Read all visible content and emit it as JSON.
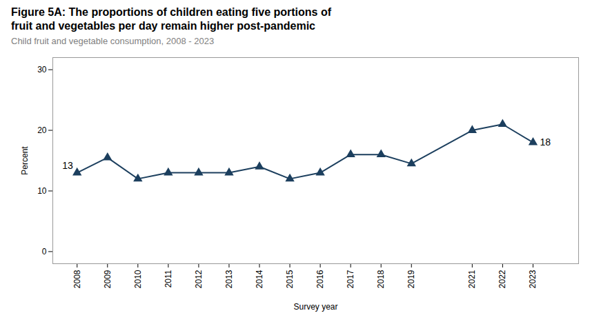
{
  "chart_data": {
    "type": "line",
    "title": "Figure 5A: The proportions of children eating five portions of\nfruit and vegetables per day remain higher post-pandemic",
    "subtitle": "Child fruit and vegetable consumption, 2008 - 2023",
    "xlabel": "Survey year",
    "ylabel": "Percent",
    "x": [
      2008,
      2009,
      2010,
      2011,
      2012,
      2013,
      2014,
      2015,
      2016,
      2017,
      2018,
      2019,
      2021,
      2022,
      2023
    ],
    "values": [
      13,
      15.5,
      12,
      13,
      13,
      13,
      14,
      12,
      13,
      16,
      16,
      14.5,
      20,
      21,
      18
    ],
    "color": "#1c3f5e",
    "marker": "triangle",
    "xlim": [
      2007.2,
      2024.5
    ],
    "xticks": [
      2008,
      2009,
      2010,
      2011,
      2012,
      2013,
      2014,
      2015,
      2016,
      2017,
      2018,
      2019,
      2021,
      2022,
      2023
    ],
    "ylim": [
      -2,
      32
    ],
    "yticks": [
      0,
      10,
      20,
      30
    ],
    "grid": false,
    "annotations": [
      {
        "text": "13",
        "x": 2008,
        "y": 13,
        "color": "#000000"
      },
      {
        "text": "18",
        "x": 2023,
        "y": 18,
        "color": "#000000"
      }
    ],
    "title_color": "#000000",
    "subtitle_color": "#808080"
  }
}
